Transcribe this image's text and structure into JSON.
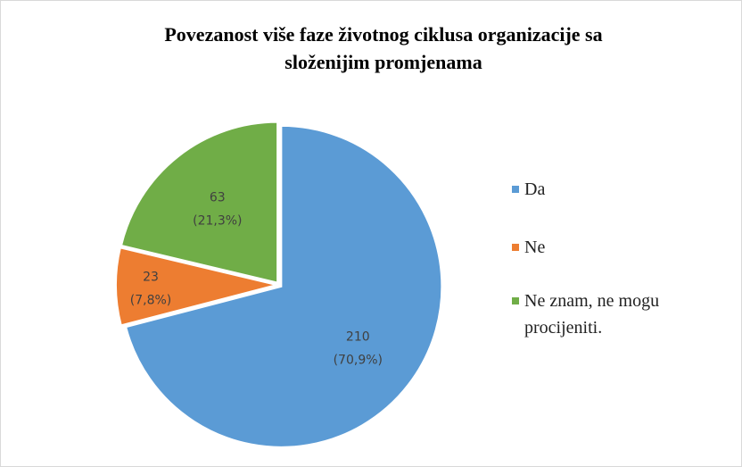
{
  "chart_data": {
    "type": "pie",
    "title": [
      "Povezanost više faze životnog ciklusa organizacije  sa",
      "složenijim promjenama"
    ],
    "categories": [
      "Da",
      "Ne",
      "Ne znam, ne mogu procijeniti."
    ],
    "values": [
      210,
      23,
      63
    ],
    "percentages": [
      70.9,
      7.8,
      21.3
    ],
    "percentage_labels": [
      "(70,9%)",
      "(7,8%)",
      "(21,3%)"
    ],
    "colors": [
      "#5b9bd5",
      "#ed7d31",
      "#70ad47"
    ],
    "legend": "right"
  }
}
